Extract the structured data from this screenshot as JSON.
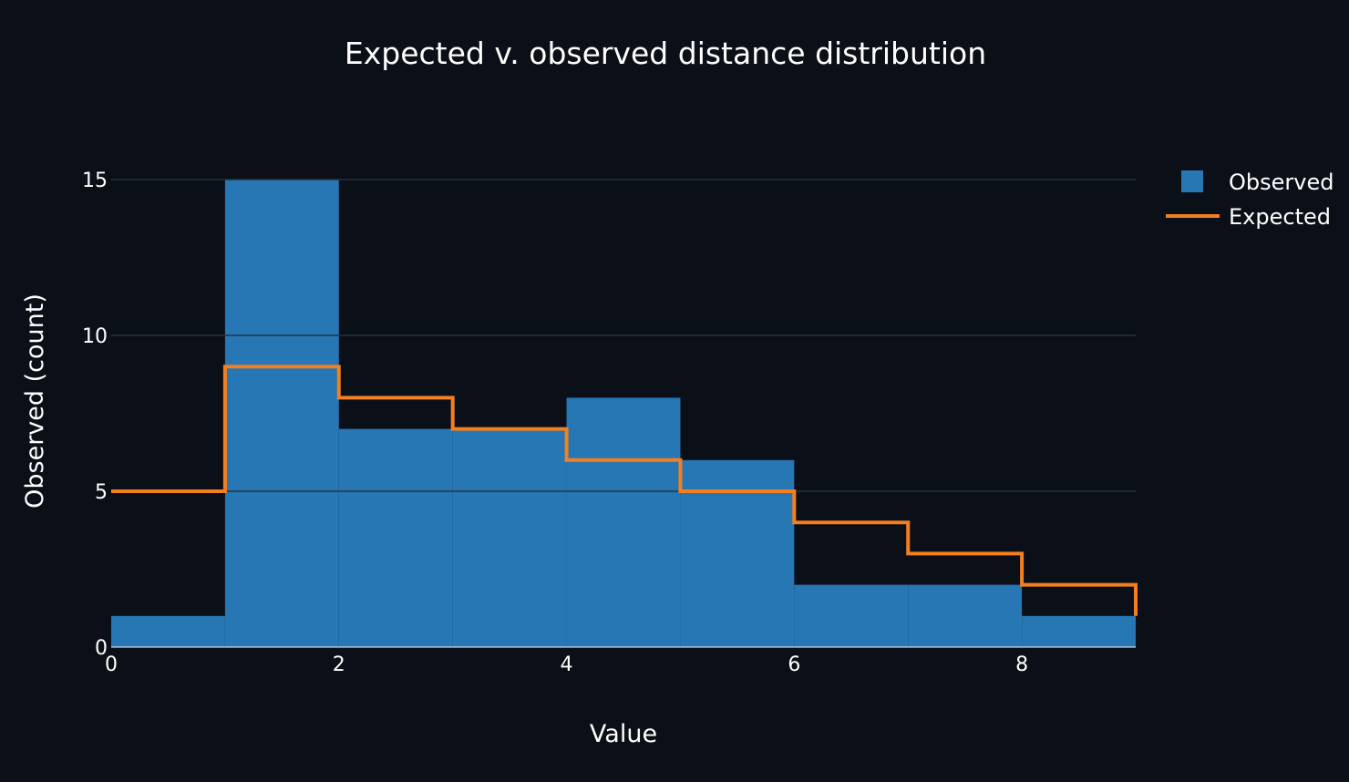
{
  "chart_data": {
    "type": "bar",
    "title": "Expected v. observed distance distribution",
    "xlabel": "Value",
    "ylabel": "Observed (count)",
    "xlim": [
      0,
      9
    ],
    "ylim": [
      0,
      16
    ],
    "x_ticks": [
      0,
      2,
      4,
      6,
      8
    ],
    "y_ticks": [
      0,
      5,
      10,
      15
    ],
    "grid": "horizontal",
    "legend_position": "top-right",
    "bin_edges": [
      0,
      1,
      2,
      3,
      4,
      5,
      6,
      7,
      8,
      9
    ],
    "series": [
      {
        "name": "Observed",
        "kind": "histogram-bars",
        "color": "#2677b4",
        "values": [
          1,
          15,
          7,
          7,
          8,
          6,
          2,
          2,
          1
        ]
      },
      {
        "name": "Expected",
        "kind": "step-line",
        "color": "#f47f1f",
        "values": [
          5,
          9,
          8,
          7,
          6,
          5,
          4,
          3,
          2
        ]
      }
    ],
    "background": "#0b0f17"
  }
}
